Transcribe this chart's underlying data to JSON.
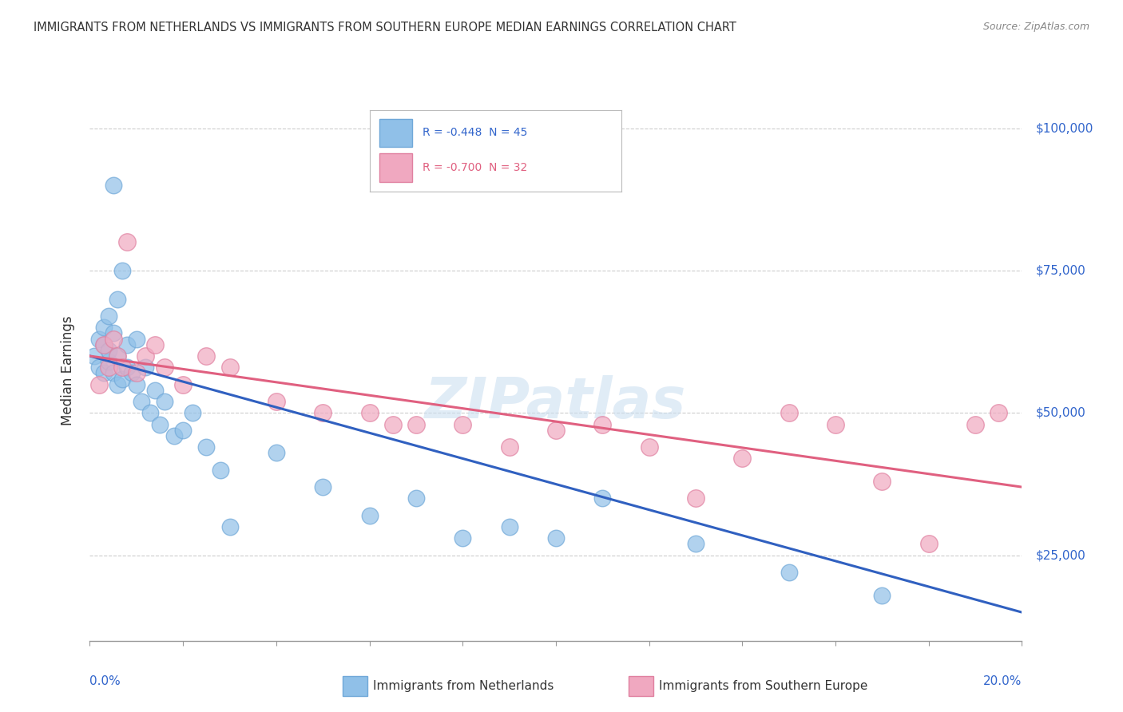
{
  "title": "IMMIGRANTS FROM NETHERLANDS VS IMMIGRANTS FROM SOUTHERN EUROPE MEDIAN EARNINGS CORRELATION CHART",
  "source": "Source: ZipAtlas.com",
  "ylabel": "Median Earnings",
  "xmin": 0.0,
  "xmax": 0.2,
  "ymin": 10000,
  "ymax": 105000,
  "yticks": [
    25000,
    50000,
    75000,
    100000
  ],
  "ytick_labels": [
    "$25,000",
    "$50,000",
    "$75,000",
    "$100,000"
  ],
  "watermark": "ZIPatlas",
  "legend_labels": [
    "R = -0.448  N = 45",
    "R = -0.700  N = 32"
  ],
  "netherlands_color": "#90c0e8",
  "netherlands_edge": "#70a8d8",
  "southern_color": "#f0a8c0",
  "southern_edge": "#e080a0",
  "line_netherlands": "#3060c0",
  "line_southern": "#e06080",
  "netherlands_x": [
    0.001,
    0.002,
    0.002,
    0.003,
    0.003,
    0.003,
    0.004,
    0.004,
    0.004,
    0.005,
    0.005,
    0.005,
    0.006,
    0.006,
    0.006,
    0.007,
    0.007,
    0.008,
    0.008,
    0.009,
    0.01,
    0.01,
    0.011,
    0.012,
    0.013,
    0.014,
    0.015,
    0.016,
    0.018,
    0.02,
    0.022,
    0.025,
    0.028,
    0.03,
    0.04,
    0.05,
    0.06,
    0.07,
    0.08,
    0.09,
    0.1,
    0.11,
    0.13,
    0.15,
    0.17
  ],
  "netherlands_y": [
    60000,
    58000,
    63000,
    57000,
    62000,
    65000,
    59000,
    61000,
    67000,
    57000,
    64000,
    90000,
    55000,
    60000,
    70000,
    56000,
    75000,
    58000,
    62000,
    57000,
    55000,
    63000,
    52000,
    58000,
    50000,
    54000,
    48000,
    52000,
    46000,
    47000,
    50000,
    44000,
    40000,
    30000,
    43000,
    37000,
    32000,
    35000,
    28000,
    30000,
    28000,
    35000,
    27000,
    22000,
    18000
  ],
  "southern_x": [
    0.002,
    0.003,
    0.004,
    0.005,
    0.006,
    0.007,
    0.008,
    0.01,
    0.012,
    0.014,
    0.016,
    0.02,
    0.025,
    0.03,
    0.04,
    0.05,
    0.06,
    0.065,
    0.07,
    0.08,
    0.09,
    0.1,
    0.11,
    0.12,
    0.13,
    0.14,
    0.15,
    0.16,
    0.17,
    0.18,
    0.19,
    0.195
  ],
  "southern_y": [
    55000,
    62000,
    58000,
    63000,
    60000,
    58000,
    80000,
    57000,
    60000,
    62000,
    58000,
    55000,
    60000,
    58000,
    52000,
    50000,
    50000,
    48000,
    48000,
    48000,
    44000,
    47000,
    48000,
    44000,
    35000,
    42000,
    50000,
    48000,
    38000,
    27000,
    48000,
    50000
  ]
}
